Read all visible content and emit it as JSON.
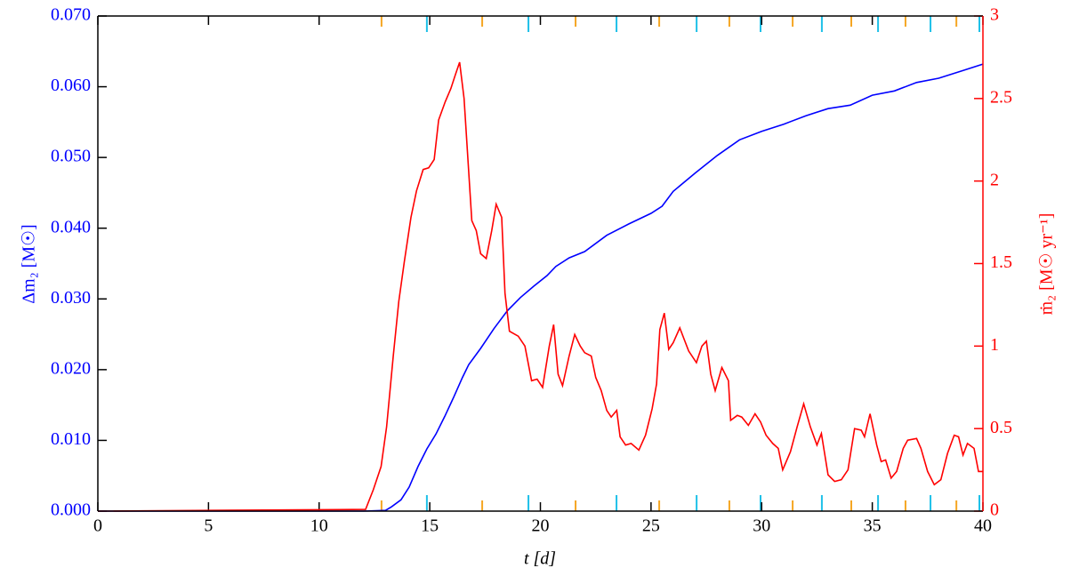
{
  "chart_data": {
    "type": "line",
    "xlabel": "t  [d]",
    "ylabel": "Δm₂  [M☉]",
    "y2label": "ṁ₂  [M☉ yr⁻¹]",
    "xlim": [
      0,
      40
    ],
    "xticks": [
      0,
      5,
      10,
      15,
      20,
      25,
      30,
      35,
      40
    ],
    "ylim": [
      0,
      0.07
    ],
    "yticks": [
      {
        "value": 0,
        "label": "0.000"
      },
      {
        "value": 0.01,
        "label": "0.010"
      },
      {
        "value": 0.02,
        "label": "0.020"
      },
      {
        "value": 0.03,
        "label": "0.030"
      },
      {
        "value": 0.04,
        "label": "0.040"
      },
      {
        "value": 0.05,
        "label": "0.050"
      },
      {
        "value": 0.06,
        "label": "0.060"
      },
      {
        "value": 0.07,
        "label": "0.070"
      }
    ],
    "y2lim": [
      0,
      3
    ],
    "y2ticks": [
      0,
      0.5,
      1,
      1.5,
      2,
      2.5,
      3
    ],
    "ycolor": "#0000ff",
    "y2color": "#ff0000",
    "series": [
      {
        "color": "#0000ff",
        "x": [
          0,
          12,
          13,
          13.27,
          13.7,
          14.07,
          14.47,
          14.87,
          15.28,
          15.68,
          16.08,
          16.48,
          16.76,
          17.3,
          17.9,
          18.5,
          19.1,
          19.7,
          20.3,
          20.7,
          21.3,
          22,
          23,
          24,
          25,
          25.5,
          26,
          27,
          28,
          29,
          30,
          31,
          32,
          33,
          34,
          35,
          36,
          37,
          38,
          39,
          40
        ],
        "values": [
          0,
          0,
          0.0001,
          0.0006,
          0.0016,
          0.0034,
          0.0063,
          0.0088,
          0.0109,
          0.0134,
          0.0161,
          0.0189,
          0.0207,
          0.023,
          0.0258,
          0.0283,
          0.0302,
          0.0318,
          0.0333,
          0.0346,
          0.0358,
          0.0367,
          0.039,
          0.0406,
          0.0421,
          0.0431,
          0.0452,
          0.0478,
          0.0503,
          0.0525,
          0.0537,
          0.0547,
          0.0559,
          0.0569,
          0.0574,
          0.0588,
          0.0594,
          0.0606,
          0.0612,
          0.0622,
          0.0632
        ]
      },
      {
        "color": "#ff0000",
        "axis": "y2",
        "x": [
          0,
          12.1,
          12.45,
          12.8,
          13.05,
          13.35,
          13.6,
          13.85,
          14.15,
          14.4,
          14.7,
          14.95,
          15.2,
          15.4,
          15.7,
          15.95,
          16.15,
          16.35,
          16.55,
          16.9,
          17.1,
          17.3,
          17.55,
          17.8,
          18.0,
          18.25,
          18.4,
          18.6,
          19.0,
          19.3,
          19.6,
          19.85,
          20.1,
          20.4,
          20.6,
          20.8,
          21.0,
          21.3,
          21.55,
          21.8,
          22.0,
          22.3,
          22.5,
          22.75,
          23.0,
          23.2,
          23.45,
          23.6,
          23.85,
          24.1,
          24.45,
          24.75,
          25.05,
          25.25,
          25.4,
          25.6,
          25.8,
          26.0,
          26.3,
          26.7,
          27.05,
          27.3,
          27.5,
          27.7,
          27.9,
          28.2,
          28.5,
          28.6,
          28.9,
          29.1,
          29.4,
          29.7,
          29.95,
          30.2,
          30.5,
          30.75,
          30.95,
          31.3,
          31.6,
          31.9,
          32.2,
          32.5,
          32.7,
          33.0,
          33.3,
          33.6,
          33.9,
          34.2,
          34.5,
          34.65,
          34.9,
          35.2,
          35.4,
          35.6,
          35.85,
          36.1,
          36.4,
          36.6,
          37.0,
          37.2,
          37.5,
          37.8,
          38.1,
          38.4,
          38.7,
          38.9,
          39.1,
          39.3,
          39.6,
          39.8,
          40
        ],
        "values": [
          0,
          0.01,
          0.13,
          0.27,
          0.51,
          0.94,
          1.27,
          1.51,
          1.78,
          1.94,
          2.07,
          2.08,
          2.13,
          2.37,
          2.48,
          2.56,
          2.64,
          2.72,
          2.5,
          1.76,
          1.7,
          1.56,
          1.53,
          1.7,
          1.86,
          1.78,
          1.32,
          1.09,
          1.06,
          1.0,
          0.79,
          0.8,
          0.75,
          1.0,
          1.13,
          0.83,
          0.76,
          0.94,
          1.07,
          1.0,
          0.96,
          0.94,
          0.81,
          0.73,
          0.61,
          0.57,
          0.61,
          0.45,
          0.4,
          0.41,
          0.37,
          0.46,
          0.62,
          0.77,
          1.1,
          1.2,
          0.98,
          1.02,
          1.11,
          0.97,
          0.9,
          1.0,
          1.03,
          0.83,
          0.73,
          0.87,
          0.79,
          0.55,
          0.58,
          0.57,
          0.52,
          0.59,
          0.54,
          0.46,
          0.41,
          0.38,
          0.25,
          0.36,
          0.51,
          0.65,
          0.51,
          0.4,
          0.47,
          0.22,
          0.18,
          0.19,
          0.25,
          0.5,
          0.49,
          0.45,
          0.59,
          0.4,
          0.3,
          0.31,
          0.2,
          0.24,
          0.38,
          0.43,
          0.44,
          0.38,
          0.24,
          0.16,
          0.19,
          0.35,
          0.46,
          0.45,
          0.34,
          0.41,
          0.38,
          0.24,
          0.24
        ]
      }
    ],
    "markers": [
      {
        "color": "#f5a623",
        "values": [
          12.82,
          17.37,
          21.59,
          25.37,
          28.54,
          31.4,
          34.05,
          36.5,
          38.8
        ]
      },
      {
        "color": "#1ec0e8",
        "values": [
          14.87,
          19.46,
          23.44,
          27.06,
          29.95,
          32.72,
          35.26,
          37.63,
          39.84
        ]
      }
    ]
  }
}
